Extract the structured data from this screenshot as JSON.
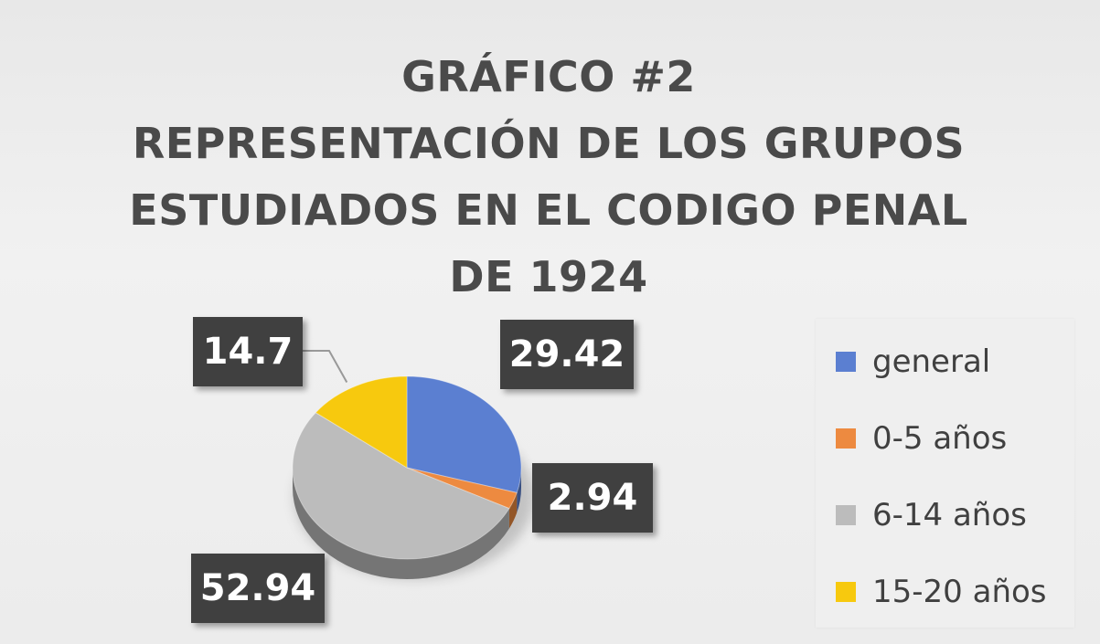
{
  "chart_data": {
    "type": "pie",
    "title_lines": [
      "GRÁFICO #2",
      "REPRESENTACIÓN DE LOS GRUPOS",
      "ESTUDIADOS EN EL CODIGO PENAL",
      "DE 1924"
    ],
    "categories": [
      "general",
      "0-5 años",
      "6-14 años",
      "15-20 años"
    ],
    "values": [
      29.42,
      2.94,
      52.94,
      14.7
    ],
    "data_labels": [
      "29.42",
      "2.94",
      "52.94",
      "14.7"
    ],
    "colors": [
      "#5b7fd1",
      "#ed8a40",
      "#bcbcbc",
      "#f7c90e"
    ],
    "style": "3d-pie",
    "legend_position": "right"
  }
}
